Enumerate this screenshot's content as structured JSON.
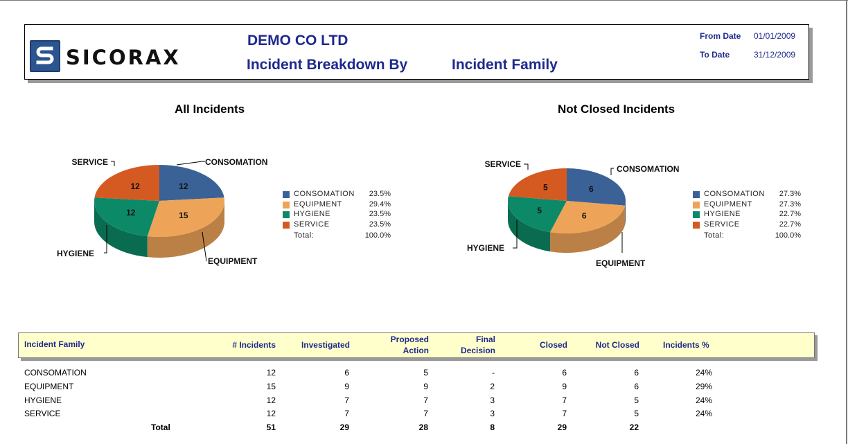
{
  "header": {
    "logo_text": "SICORAX",
    "company": "DEMO CO LTD",
    "title_prefix": "Incident Breakdown By",
    "title_suffix": "Incident Family",
    "from_label": "From Date",
    "from_value": "01/01/2009",
    "to_label": "To Date",
    "to_value": "31/12/2009"
  },
  "colors": {
    "CONSOMATION": "#3a6296",
    "EQUIPMENT": "#eea458",
    "HYGIENE": "#0c8a68",
    "SERVICE": "#d45a22"
  },
  "chart_data": [
    {
      "type": "pie",
      "title": "All Incidents",
      "labels": [
        "CONSOMATION",
        "EQUIPMENT",
        "HYGIENE",
        "SERVICE"
      ],
      "values": [
        12,
        15,
        12,
        12
      ],
      "percents": [
        "23.5%",
        "29.4%",
        "23.5%",
        "23.5%"
      ],
      "total_label": "Total:",
      "total_percent": "100.0%"
    },
    {
      "type": "pie",
      "title": "Not Closed Incidents",
      "labels": [
        "CONSOMATION",
        "EQUIPMENT",
        "HYGIENE",
        "SERVICE"
      ],
      "values": [
        6,
        6,
        5,
        5
      ],
      "percents": [
        "27.3%",
        "27.3%",
        "22.7%",
        "22.7%"
      ],
      "total_label": "Total:",
      "total_percent": "100.0%"
    }
  ],
  "table": {
    "columns": [
      "Incident Family",
      "# Incidents",
      "Investigated",
      "Proposed\nAction",
      "Final\nDecision",
      "Closed",
      "Not Closed",
      "Incidents %"
    ],
    "rows": [
      [
        "CONSOMATION",
        "12",
        "6",
        "5",
        "-",
        "6",
        "6",
        "24%"
      ],
      [
        "EQUIPMENT",
        "15",
        "9",
        "9",
        "2",
        "9",
        "6",
        "29%"
      ],
      [
        "HYGIENE",
        "12",
        "7",
        "7",
        "3",
        "7",
        "5",
        "24%"
      ],
      [
        "SERVICE",
        "12",
        "7",
        "7",
        "3",
        "7",
        "5",
        "24%"
      ]
    ],
    "totals": [
      "Total",
      "51",
      "29",
      "28",
      "8",
      "29",
      "22"
    ]
  }
}
